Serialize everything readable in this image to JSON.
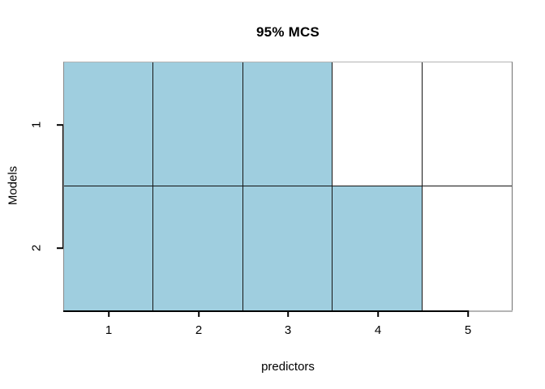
{
  "chart_data": {
    "type": "heatmap",
    "title": "95% MCS",
    "xlabel": "predictors",
    "ylabel": "Models",
    "x_tick_labels": [
      "1",
      "2",
      "3",
      "4",
      "5"
    ],
    "y_tick_labels": [
      "1",
      "2"
    ],
    "x_range": [
      0.5,
      5.5
    ],
    "y_range": [
      0.5,
      2.5
    ],
    "rows": [
      {
        "model": "1",
        "cells": [
          1,
          1,
          1,
          0,
          0
        ]
      },
      {
        "model": "2",
        "cells": [
          1,
          1,
          1,
          1,
          0
        ]
      }
    ],
    "fill_color": "#9FCEDF",
    "empty_color": "#FFFFFF",
    "gridline_color": "#111111",
    "legend_position": "none"
  }
}
